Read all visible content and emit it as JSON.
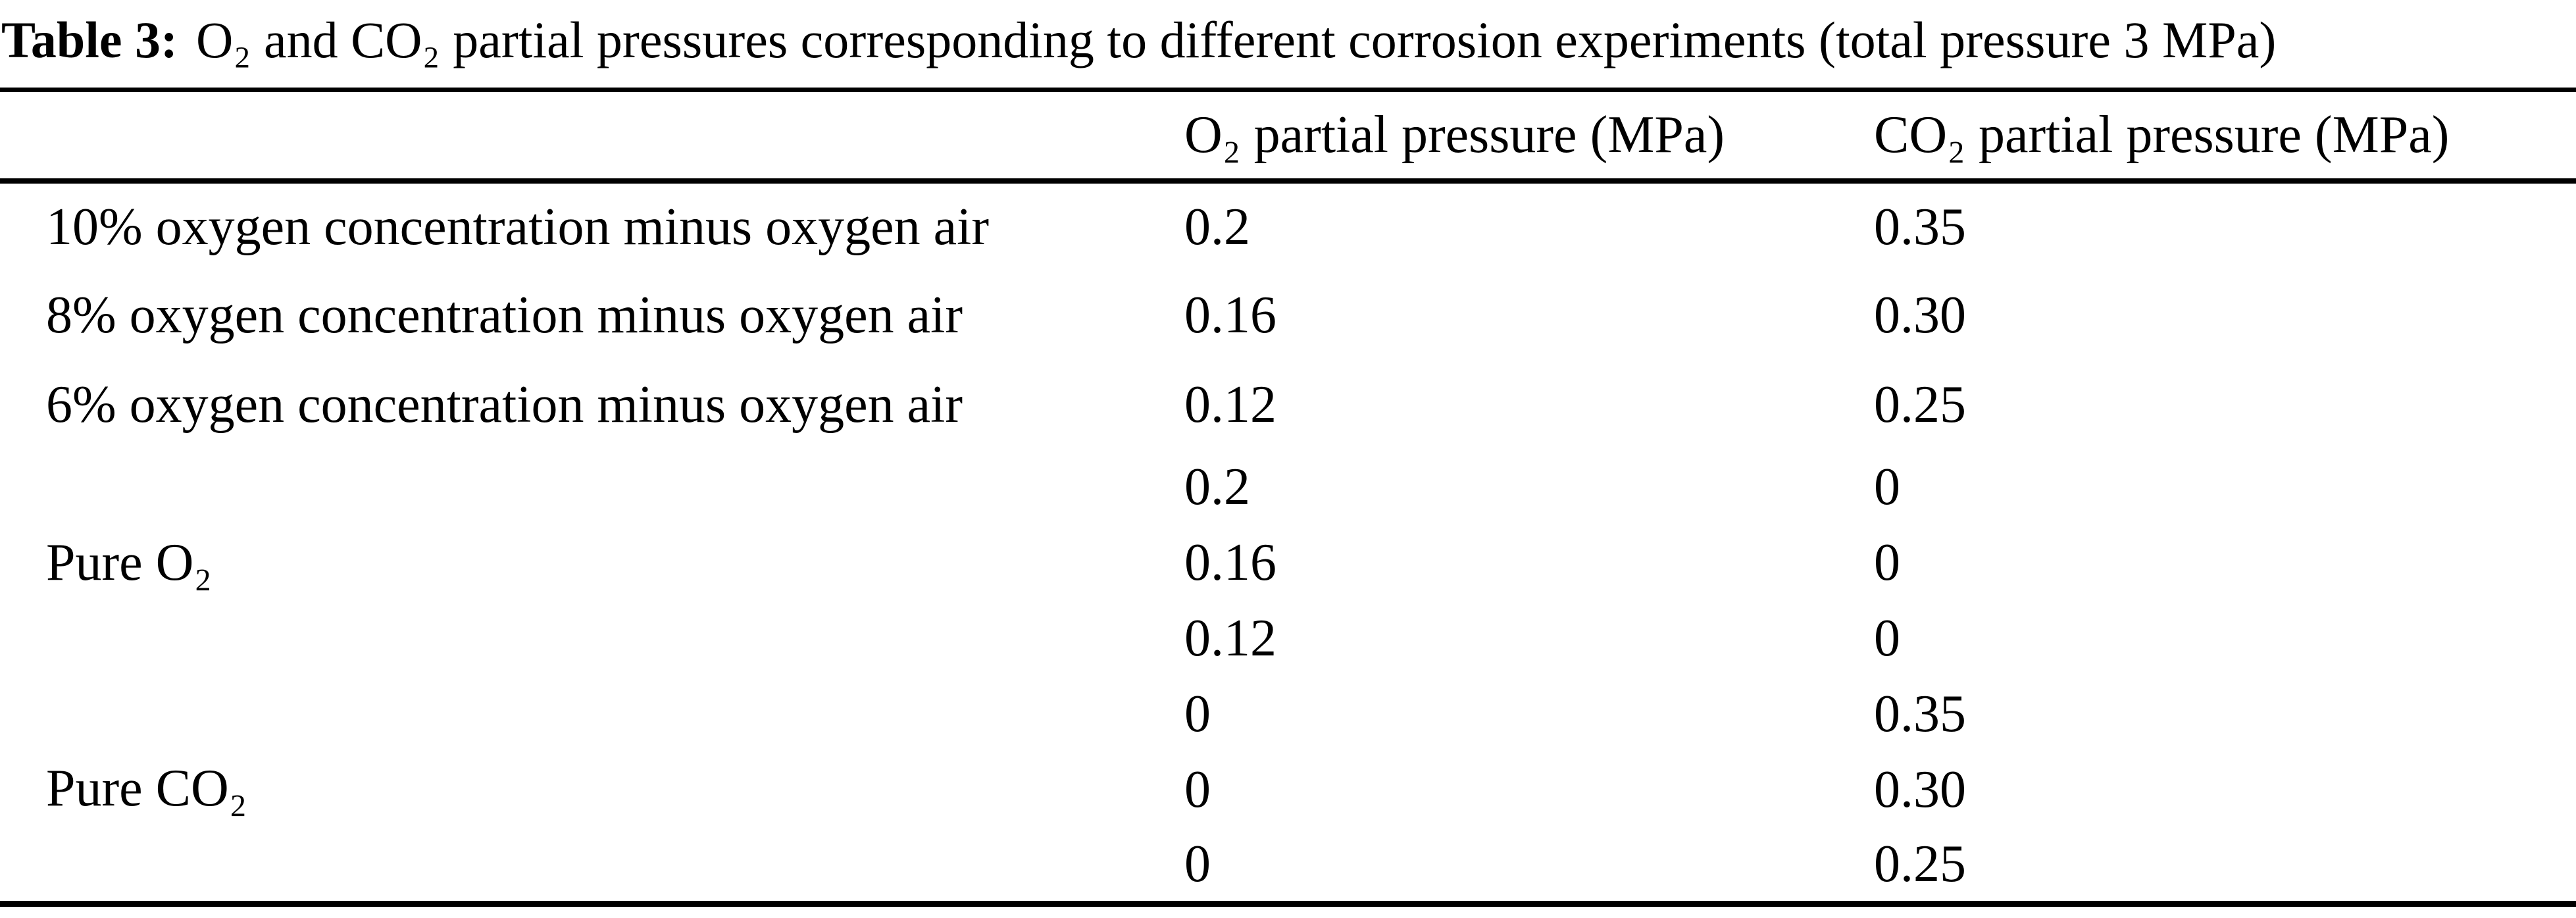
{
  "caption": {
    "prefix": "Table 3:",
    "text": "O₂ and CO₂ partial pressures corresponding to different corrosion experiments (total pressure 3 MPa)"
  },
  "table": {
    "columns": [
      "",
      "O₂ partial pressure (MPa)",
      "CO₂ partial pressure (MPa)"
    ],
    "rows": [
      {
        "label": "10% oxygen concentration minus oxygen air",
        "o2": "0.2",
        "co2": "0.35"
      },
      {
        "label": "8% oxygen concentration minus oxygen air",
        "o2": "0.16",
        "co2": "0.30"
      },
      {
        "label": "6% oxygen concentration minus oxygen air",
        "o2": "0.12",
        "co2": "0.25"
      }
    ],
    "row_groups": [
      {
        "label": "Pure O₂",
        "rows": [
          {
            "o2": "0.2",
            "co2": "0"
          },
          {
            "o2": "0.16",
            "co2": "0"
          },
          {
            "o2": "0.12",
            "co2": "0"
          }
        ]
      },
      {
        "label": "Pure CO₂",
        "rows": [
          {
            "o2": "0",
            "co2": "0.35"
          },
          {
            "o2": "0",
            "co2": "0.30"
          },
          {
            "o2": "0",
            "co2": "0.25"
          }
        ]
      }
    ]
  },
  "colors": {
    "text": "#000000",
    "background": "#ffffff",
    "rule": "#000000"
  }
}
